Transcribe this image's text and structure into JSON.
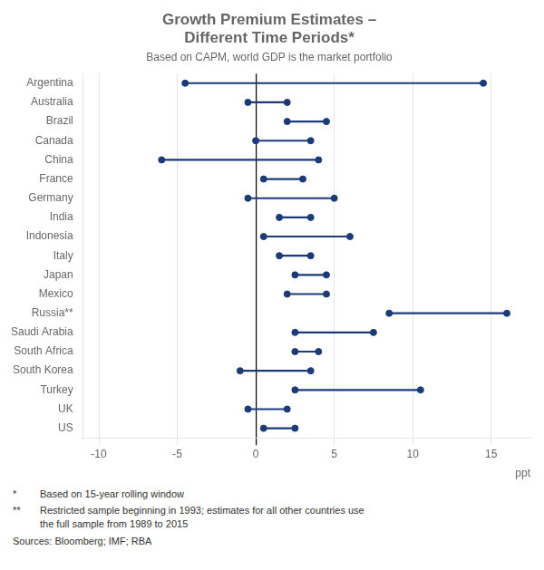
{
  "chart_data": {
    "type": "dumbbell",
    "title": [
      "Growth Premium Estimates –",
      "Different Time Periods*"
    ],
    "subtitle": "Based on CAPM, world GDP is the market portfolio",
    "xlabel": "ppt",
    "orientation": "horizontal",
    "categories": [
      "Argentina",
      "Australia",
      "Brazil",
      "Canada",
      "China",
      "France",
      "Germany",
      "India",
      "Indonesia",
      "Italy",
      "Japan",
      "Mexico",
      "Russia**",
      "Saudi Arabia",
      "South Africa",
      "South Korea",
      "Turkey",
      "UK",
      "US"
    ],
    "values": [
      [
        -4.5,
        14.5
      ],
      [
        -0.5,
        2.0
      ],
      [
        2.0,
        4.5
      ],
      [
        0.0,
        3.5
      ],
      [
        -6.0,
        4.0
      ],
      [
        0.5,
        3.0
      ],
      [
        -0.5,
        5.0
      ],
      [
        1.5,
        3.5
      ],
      [
        0.5,
        6.0
      ],
      [
        1.5,
        3.5
      ],
      [
        2.5,
        4.5
      ],
      [
        2.0,
        4.5
      ],
      [
        8.5,
        16.0
      ],
      [
        2.5,
        7.5
      ],
      [
        2.5,
        4.0
      ],
      [
        -1.0,
        3.5
      ],
      [
        2.5,
        10.5
      ],
      [
        -0.5,
        2.0
      ],
      [
        0.5,
        2.5
      ]
    ],
    "color": "#1a3a7a",
    "xlim": [
      -11,
      17.5
    ],
    "xticks": [
      -10,
      -5,
      0,
      5,
      10,
      15
    ],
    "grid": true,
    "footnotes": [
      {
        "symbol": "*",
        "text": "Based on 15-year rolling window"
      },
      {
        "symbol": "**",
        "text": "Restricted sample beginning in 1993; estimates for all other countries use\nthe full sample from 1989 to 2015"
      },
      {
        "text": "Sources:  Bloomberg; IMF; RBA"
      }
    ]
  }
}
